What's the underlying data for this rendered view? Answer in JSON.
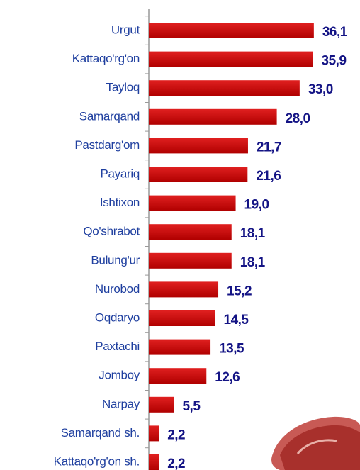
{
  "chart_data": {
    "type": "barh",
    "categories": [
      "Urgut",
      "Kattaqo'rg'on",
      "Tayloq",
      "Samarqand",
      "Pastdarg'om",
      "Payariq",
      "Ishtixon",
      "Qo'shrabot",
      "Bulung'ur",
      "Nurobod",
      "Oqdaryo",
      "Paxtachi",
      "Jomboy",
      "Narpay",
      "Samarqand sh.",
      "Kattaqo'rg'on sh."
    ],
    "values": [
      36.1,
      35.9,
      33.0,
      28.0,
      21.7,
      21.6,
      19.0,
      18.1,
      18.1,
      15.2,
      14.5,
      13.5,
      12.6,
      5.5,
      2.2,
      2.2
    ],
    "value_labels": [
      "36,1",
      "35,9",
      "33,0",
      "28,0",
      "21,7",
      "21,6",
      "19,0",
      "18,1",
      "18,1",
      "15,2",
      "14,5",
      "13,5",
      "12,6",
      "5,5",
      "2,2",
      "2,2"
    ],
    "color": "#cc0000"
  }
}
